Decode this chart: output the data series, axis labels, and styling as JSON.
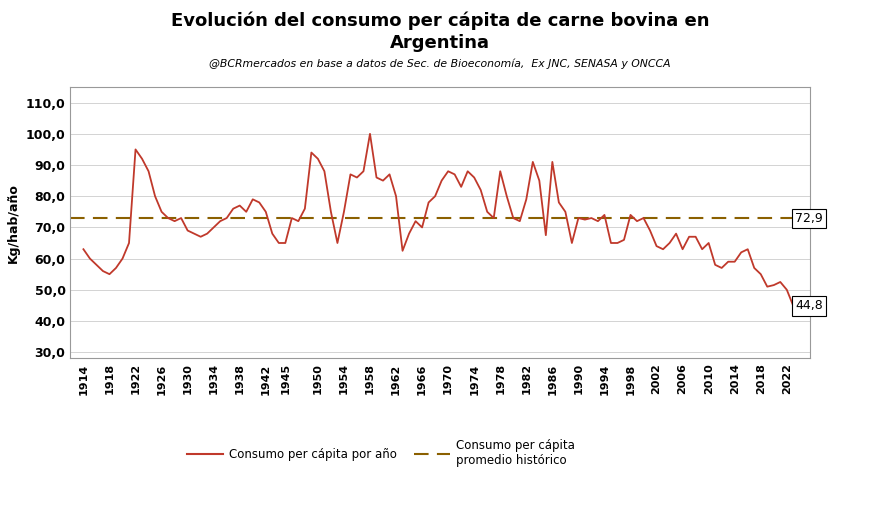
{
  "title": "Evolución del consumo per cápita de carne bovina en\nArgentina",
  "subtitle": "@BCRmercados en base a datos de Sec. de Bioeconomía,  Ex JNC, SENASA y ONCCA",
  "ylabel": "Kg/hab/año",
  "avg_value": 72.9,
  "last_value": 44.8,
  "last_year": 2023,
  "bg_color": "#ffffff",
  "plot_bg_color": "#ffffff",
  "line_color": "#c0392b",
  "avg_color": "#8B6000",
  "yticks": [
    30.0,
    40.0,
    50.0,
    60.0,
    70.0,
    80.0,
    90.0,
    100.0,
    110.0
  ],
  "xticks": [
    1914,
    1918,
    1922,
    1926,
    1930,
    1934,
    1938,
    1942,
    1945,
    1950,
    1954,
    1958,
    1962,
    1966,
    1970,
    1974,
    1978,
    1982,
    1986,
    1990,
    1994,
    1998,
    2002,
    2006,
    2010,
    2014,
    2018,
    2022
  ],
  "years": [
    1914,
    1915,
    1916,
    1917,
    1918,
    1919,
    1920,
    1921,
    1922,
    1923,
    1924,
    1925,
    1926,
    1927,
    1928,
    1929,
    1930,
    1931,
    1932,
    1933,
    1934,
    1935,
    1936,
    1937,
    1938,
    1939,
    1940,
    1941,
    1942,
    1943,
    1944,
    1945,
    1946,
    1947,
    1948,
    1949,
    1950,
    1951,
    1952,
    1953,
    1954,
    1955,
    1956,
    1957,
    1958,
    1959,
    1960,
    1961,
    1962,
    1963,
    1964,
    1965,
    1966,
    1967,
    1968,
    1969,
    1970,
    1971,
    1972,
    1973,
    1974,
    1975,
    1976,
    1977,
    1978,
    1979,
    1980,
    1981,
    1982,
    1983,
    1984,
    1985,
    1986,
    1987,
    1988,
    1989,
    1990,
    1991,
    1992,
    1993,
    1994,
    1995,
    1996,
    1997,
    1998,
    1999,
    2000,
    2001,
    2002,
    2003,
    2004,
    2005,
    2006,
    2007,
    2008,
    2009,
    2010,
    2011,
    2012,
    2013,
    2014,
    2015,
    2016,
    2017,
    2018,
    2019,
    2020,
    2021,
    2022,
    2023
  ],
  "values": [
    63.0,
    60.0,
    58.0,
    56.0,
    55.0,
    57.0,
    60.0,
    65.0,
    95.0,
    92.0,
    88.0,
    80.0,
    75.0,
    73.0,
    72.0,
    73.0,
    69.0,
    68.0,
    67.0,
    68.0,
    70.0,
    72.0,
    73.0,
    76.0,
    77.0,
    75.0,
    79.0,
    78.0,
    75.0,
    68.0,
    65.0,
    65.0,
    73.0,
    72.0,
    76.0,
    94.0,
    92.0,
    88.0,
    75.0,
    65.0,
    75.0,
    87.0,
    86.0,
    88.0,
    100.0,
    86.0,
    85.0,
    87.0,
    80.0,
    62.5,
    68.0,
    72.0,
    70.0,
    78.0,
    80.0,
    85.0,
    88.0,
    87.0,
    83.0,
    88.0,
    86.0,
    82.0,
    75.0,
    73.0,
    88.0,
    80.0,
    73.0,
    72.0,
    79.0,
    91.0,
    85.0,
    67.5,
    91.0,
    78.0,
    75.0,
    65.0,
    73.0,
    72.5,
    73.0,
    72.0,
    74.0,
    65.0,
    65.0,
    66.0,
    74.0,
    72.0,
    73.0,
    69.0,
    64.0,
    63.0,
    65.0,
    68.0,
    63.0,
    67.0,
    67.0,
    63.0,
    65.0,
    58.0,
    57.0,
    59.0,
    59.0,
    62.0,
    63.0,
    57.0,
    55.0,
    51.0,
    51.5,
    52.5,
    50.0,
    44.8
  ],
  "legend_label1": "Consumo per cápita por año",
  "legend_label2": "Consumo per cápita\npromedio histórico"
}
